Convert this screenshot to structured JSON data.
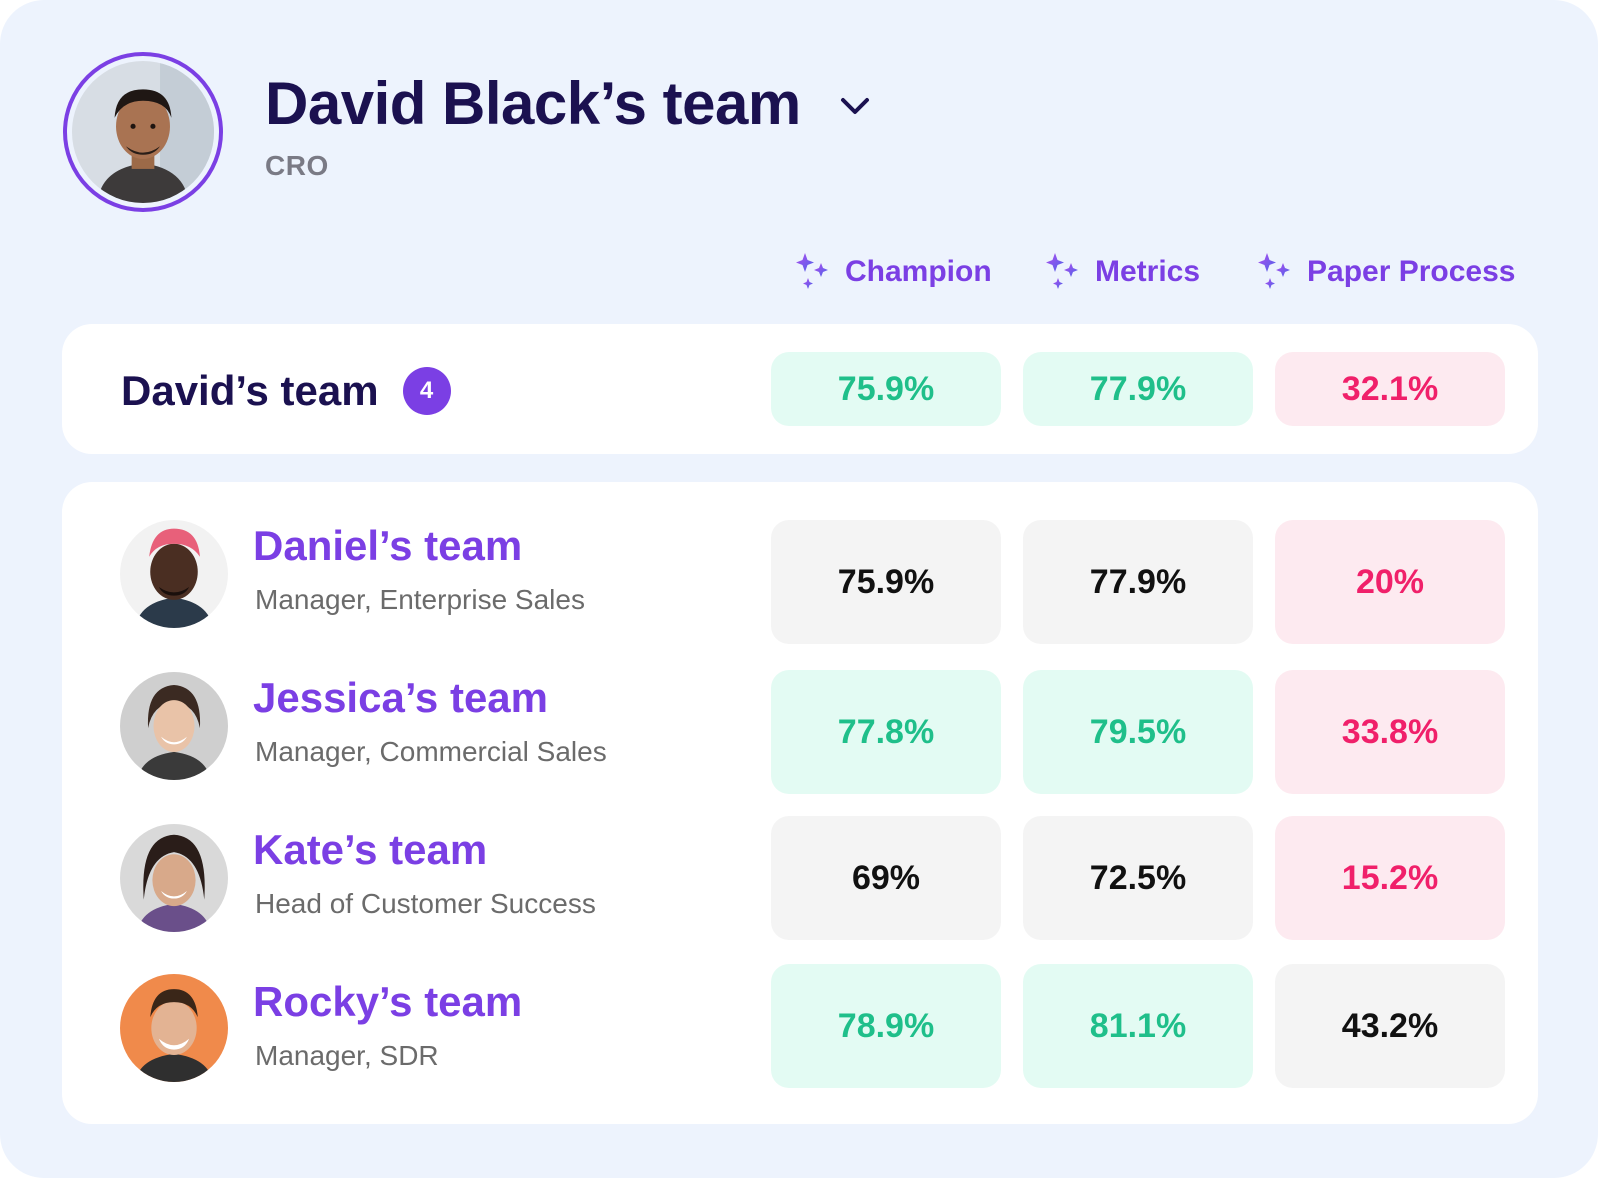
{
  "header": {
    "title": "David Black’s team",
    "subtitle": "CRO"
  },
  "columns": [
    {
      "label": "Champion",
      "icon": "sparkles-icon"
    },
    {
      "label": "Metrics",
      "icon": "sparkles-icon"
    },
    {
      "label": "Paper Process",
      "icon": "sparkles-icon"
    }
  ],
  "summary": {
    "name": "David’s team",
    "count": "4",
    "values": [
      "75.9%",
      "77.9%",
      "32.1%"
    ]
  },
  "members": [
    {
      "name": "Daniel’s team",
      "role": "Manager, Enterprise Sales",
      "values": [
        "75.9%",
        "77.9%",
        "20%"
      ]
    },
    {
      "name": "Jessica’s team",
      "role": "Manager, Commercial Sales",
      "values": [
        "77.8%",
        "79.5%",
        "33.8%"
      ]
    },
    {
      "name": "Kate’s team",
      "role": "Head of Customer Success",
      "values": [
        "69%",
        "72.5%",
        "15.2%"
      ]
    },
    {
      "name": "Rocky’s team",
      "role": "Manager, SDR",
      "values": [
        "78.9%",
        "81.1%",
        "43.2%"
      ]
    }
  ],
  "colors": {
    "accent": "#7b3fe4",
    "title": "#1b1150",
    "positive_text": "#1fbf8a",
    "positive_bg": "#e3fbf3",
    "negative_text": "#f0206a",
    "negative_bg": "#fdeaf0",
    "neutral_bg": "#f4f4f4"
  }
}
